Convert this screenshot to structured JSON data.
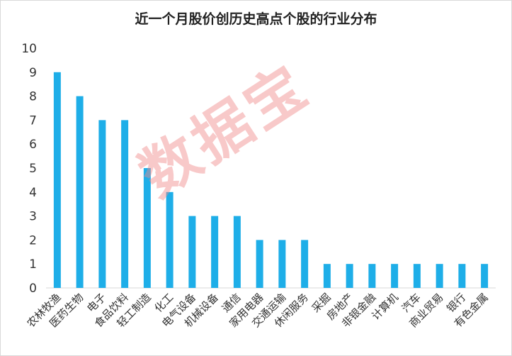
{
  "chart_data": {
    "type": "bar",
    "title": "近一个月股价创历史高点个股的行业分布",
    "xlabel": "",
    "ylabel": "",
    "ylim": [
      0,
      10
    ],
    "yticks": [
      0,
      1,
      2,
      3,
      4,
      5,
      6,
      7,
      8,
      9,
      10
    ],
    "grid": false,
    "legend": "none",
    "bar_color": "#1eaee8",
    "categories": [
      "农林牧渔",
      "医药生物",
      "电子",
      "食品饮料",
      "轻工制造",
      "化工",
      "电气设备",
      "机械设备",
      "通信",
      "家用电器",
      "交通运输",
      "休闲服务",
      "采掘",
      "房地产",
      "非银金融",
      "计算机",
      "汽车",
      "商业贸易",
      "银行",
      "有色金属"
    ],
    "values": [
      9,
      8,
      7,
      7,
      5,
      4,
      3,
      3,
      3,
      2,
      2,
      2,
      1,
      1,
      1,
      1,
      1,
      1,
      1,
      1
    ]
  },
  "watermark": "数据宝"
}
